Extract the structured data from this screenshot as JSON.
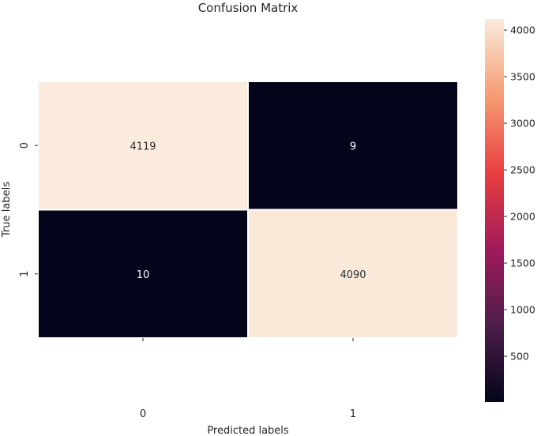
{
  "chart_data": {
    "type": "heatmap",
    "title": "Confusion Matrix",
    "xlabel": "Predicted labels",
    "ylabel": "True labels",
    "x_categories": [
      "0",
      "1"
    ],
    "y_categories": [
      "0",
      "1"
    ],
    "values": [
      [
        4119,
        9
      ],
      [
        10,
        4090
      ]
    ],
    "colorbar": {
      "vmin": 9,
      "vmax": 4119,
      "ticks": [
        "500",
        "1000",
        "1500",
        "2000",
        "2500",
        "3000",
        "3500",
        "4000"
      ],
      "colormap": "rocket",
      "colors": [
        "#03051a",
        "#4c1d4b",
        "#a11a5b",
        "#e83f3f",
        "#f69c73",
        "#faebdd"
      ]
    },
    "cell_text_color": "#ffffff",
    "cell_text_color_light": "#262626",
    "grid": false,
    "legend": "colorbar-right"
  }
}
